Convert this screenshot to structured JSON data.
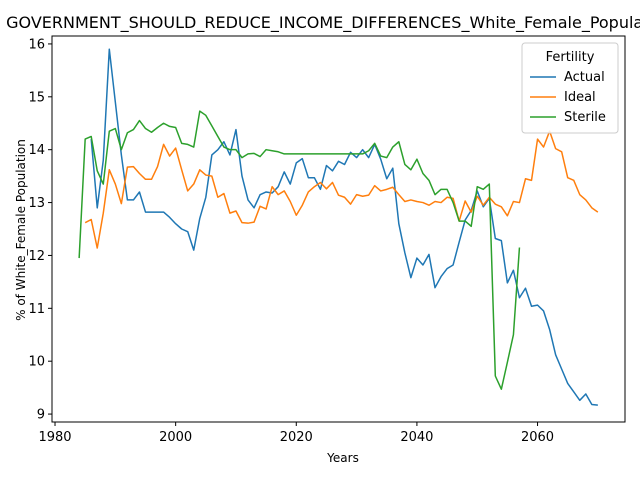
{
  "chart_data": {
    "type": "line",
    "title": "GOVERNMENT_SHOULD_REDUCE_INCOME_DIFFERENCES_White_Female_Population",
    "xlabel": "Years",
    "ylabel": "% of White_Female Population",
    "xlim": [
      1979.5,
      2074.5
    ],
    "ylim": [
      8.85,
      16.15
    ],
    "xticks": [
      1980,
      2000,
      2020,
      2040,
      2060
    ],
    "yticks": [
      9,
      10,
      11,
      12,
      13,
      14,
      15,
      16
    ],
    "grid": false,
    "legend": {
      "title": "Fertility",
      "placement": "top-right"
    },
    "series": [
      {
        "name": "Actual",
        "color": "#1f77b4",
        "x": [
          1986,
          1987,
          1988,
          1989,
          1990,
          1991,
          1992,
          1993,
          1994,
          1995,
          1996,
          1997,
          1998,
          1999,
          2000,
          2001,
          2002,
          2003,
          2004,
          2005,
          2006,
          2007,
          2008,
          2009,
          2010,
          2011,
          2012,
          2013,
          2014,
          2015,
          2016,
          2017,
          2018,
          2019,
          2020,
          2021,
          2022,
          2023,
          2024,
          2025,
          2026,
          2027,
          2028,
          2029,
          2030,
          2031,
          2032,
          2033,
          2034,
          2035,
          2036,
          2037,
          2038,
          2039,
          2040,
          2041,
          2042,
          2043,
          2044,
          2045,
          2046,
          2047,
          2048,
          2049,
          2050,
          2051,
          2052,
          2053,
          2054,
          2055,
          2056,
          2057,
          2058,
          2059,
          2060,
          2061,
          2062,
          2063,
          2064,
          2065,
          2066,
          2067,
          2068,
          2069,
          2070
        ],
        "values": [
          14.2,
          12.9,
          13.8,
          15.9,
          14.9,
          13.9,
          13.05,
          13.05,
          13.2,
          12.82,
          12.82,
          12.82,
          12.82,
          12.72,
          12.6,
          12.5,
          12.45,
          12.1,
          12.7,
          13.1,
          13.9,
          14.0,
          14.15,
          13.9,
          14.38,
          13.5,
          13.05,
          12.9,
          13.15,
          13.2,
          13.18,
          13.3,
          13.58,
          13.35,
          13.75,
          13.83,
          13.47,
          13.47,
          13.25,
          13.7,
          13.6,
          13.78,
          13.72,
          13.95,
          13.85,
          14.0,
          13.85,
          14.1,
          13.82,
          13.45,
          13.65,
          12.6,
          12.05,
          11.58,
          11.95,
          11.82,
          12.02,
          11.39,
          11.6,
          11.75,
          11.82,
          12.25,
          12.67,
          12.85,
          13.22,
          12.92,
          13.08,
          12.32,
          12.28,
          11.48,
          11.72,
          11.2,
          11.38,
          11.04,
          11.06,
          10.95,
          10.6,
          10.12,
          9.85,
          9.58,
          9.42,
          9.26,
          9.38,
          9.18,
          9.17
        ]
      },
      {
        "name": "Ideal",
        "color": "#ff7f0e",
        "x": [
          1985,
          1986,
          1987,
          1988,
          1989,
          1990,
          1991,
          1992,
          1993,
          1994,
          1995,
          1996,
          1997,
          1998,
          1999,
          2000,
          2001,
          2002,
          2003,
          2004,
          2005,
          2006,
          2007,
          2008,
          2009,
          2010,
          2011,
          2012,
          2013,
          2014,
          2015,
          2016,
          2017,
          2018,
          2019,
          2020,
          2021,
          2022,
          2023,
          2024,
          2025,
          2026,
          2027,
          2028,
          2029,
          2030,
          2031,
          2032,
          2033,
          2034,
          2035,
          2036,
          2037,
          2038,
          2039,
          2040,
          2041,
          2042,
          2043,
          2044,
          2045,
          2046,
          2047,
          2048,
          2049,
          2050,
          2051,
          2052,
          2053,
          2054,
          2055,
          2056,
          2057,
          2058,
          2059,
          2060,
          2061,
          2062,
          2063,
          2064,
          2065,
          2066,
          2067,
          2068,
          2069,
          2070
        ],
        "values": [
          12.62,
          12.68,
          12.14,
          12.8,
          13.62,
          13.35,
          12.98,
          13.67,
          13.68,
          13.55,
          13.44,
          13.44,
          13.68,
          14.1,
          13.88,
          14.03,
          13.62,
          13.22,
          13.35,
          13.62,
          13.52,
          13.5,
          13.1,
          13.17,
          12.8,
          12.84,
          12.62,
          12.61,
          12.63,
          12.93,
          12.88,
          13.3,
          13.15,
          13.22,
          13.02,
          12.76,
          12.95,
          13.2,
          13.3,
          13.38,
          13.26,
          13.38,
          13.14,
          13.1,
          12.97,
          13.15,
          13.12,
          13.14,
          13.32,
          13.22,
          13.25,
          13.29,
          13.15,
          13.02,
          13.05,
          13.02,
          13.0,
          12.95,
          13.02,
          13.0,
          13.1,
          13.08,
          12.65,
          13.03,
          12.82,
          13.12,
          12.95,
          13.1,
          12.97,
          12.92,
          12.75,
          13.02,
          13.0,
          13.45,
          13.42,
          14.2,
          14.05,
          14.35,
          14.02,
          13.96,
          13.47,
          13.42,
          13.15,
          13.05,
          12.9,
          12.82
        ]
      },
      {
        "name": "Sterile",
        "color": "#2ca02c",
        "x": [
          1984,
          1985,
          1986,
          1987,
          1988,
          1989,
          1990,
          1991,
          1992,
          1993,
          1994,
          1995,
          1996,
          1997,
          1998,
          1999,
          2000,
          2001,
          2002,
          2003,
          2004,
          2005,
          2006,
          2007,
          2008,
          2009,
          2010,
          2011,
          2012,
          2013,
          2014,
          2015,
          2016,
          2017,
          2018,
          2019,
          2020,
          2021,
          2022,
          2023,
          2024,
          2025,
          2026,
          2027,
          2028,
          2029,
          2030,
          2031,
          2032,
          2033,
          2034,
          2035,
          2036,
          2037,
          2038,
          2039,
          2040,
          2041,
          2042,
          2043,
          2044,
          2045,
          2046,
          2047,
          2048,
          2049,
          2050,
          2051,
          2052,
          2053,
          2054,
          2055,
          2056,
          2057
        ],
        "values": [
          11.95,
          14.2,
          14.25,
          13.6,
          13.35,
          14.35,
          14.4,
          14.0,
          14.32,
          14.38,
          14.55,
          14.4,
          14.33,
          14.42,
          14.5,
          14.44,
          14.42,
          14.12,
          14.1,
          14.05,
          14.73,
          14.65,
          14.45,
          14.25,
          14.05,
          14.0,
          14.0,
          13.85,
          13.92,
          13.93,
          13.87,
          14.0,
          13.98,
          13.96,
          13.92,
          13.92,
          13.92,
          13.92,
          13.92,
          13.92,
          13.92,
          13.92,
          13.92,
          13.92,
          13.92,
          13.92,
          13.92,
          13.92,
          13.98,
          14.12,
          13.88,
          13.85,
          14.05,
          14.15,
          13.72,
          13.62,
          13.82,
          13.55,
          13.42,
          13.15,
          13.25,
          13.25,
          13.0,
          12.65,
          12.65,
          12.55,
          13.3,
          13.25,
          13.35,
          9.72,
          9.47,
          9.98,
          10.5,
          12.15
        ]
      }
    ]
  }
}
